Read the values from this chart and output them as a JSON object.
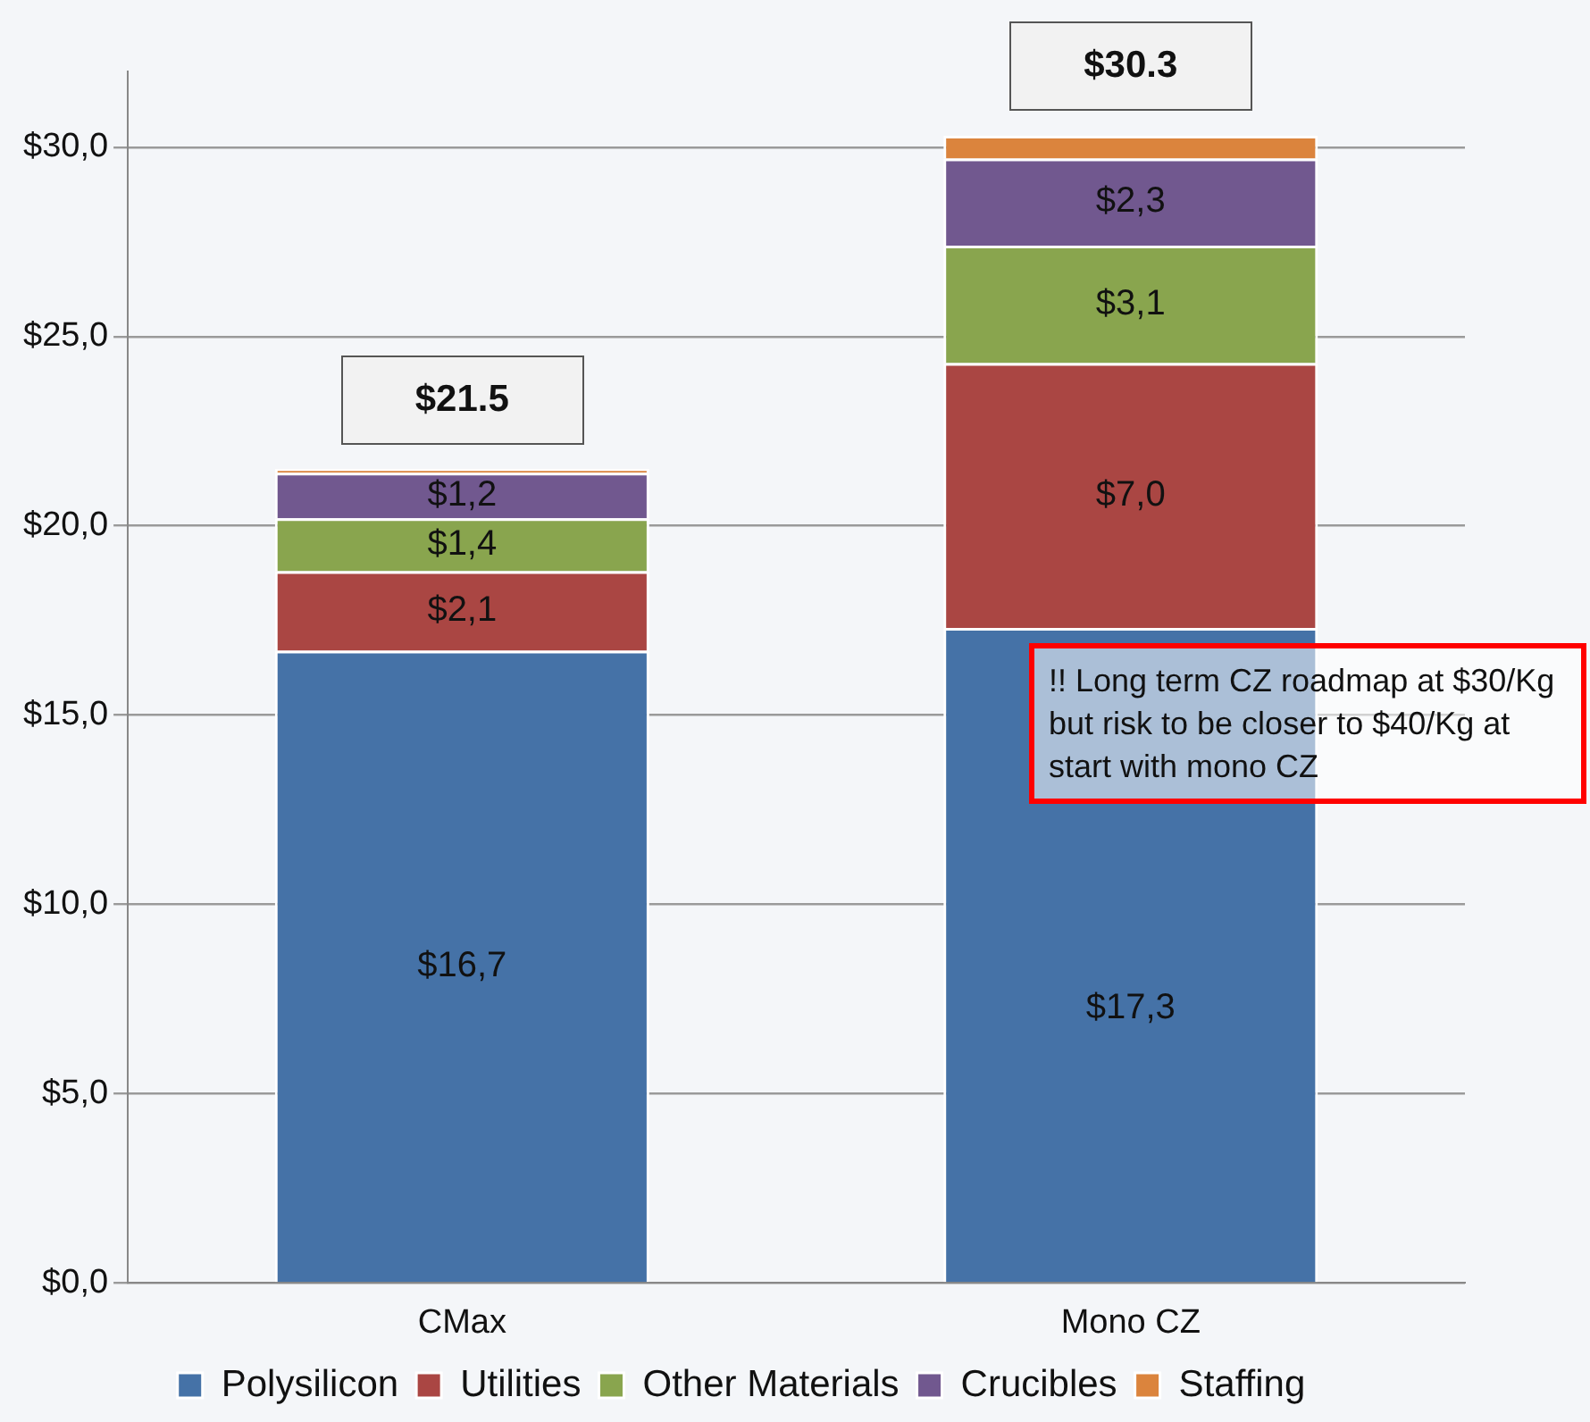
{
  "chart_data": {
    "type": "bar",
    "stacked": true,
    "categories": [
      "CMax",
      "Mono CZ"
    ],
    "series": [
      {
        "name": "Polysilicon",
        "color": "#4572a7",
        "values": [
          16.7,
          17.3
        ],
        "value_labels": [
          "$16,7",
          "$17,3"
        ]
      },
      {
        "name": "Utilities",
        "color": "#aa4643",
        "values": [
          2.1,
          7.0
        ],
        "value_labels": [
          "$2,1",
          "$7,0"
        ]
      },
      {
        "name": "Other Materials",
        "color": "#89a54e",
        "values": [
          1.4,
          3.1
        ],
        "value_labels": [
          "$1,4",
          "$3,1"
        ]
      },
      {
        "name": "Crucibles",
        "color": "#71588f",
        "values": [
          1.2,
          2.3
        ],
        "value_labels": [
          "$1,2",
          "$2,3"
        ]
      },
      {
        "name": "Staffing",
        "color": "#db843d",
        "values": [
          0.1,
          0.6
        ],
        "value_labels": [
          null,
          null
        ]
      }
    ],
    "totals": [
      "$21.5",
      "$30.3"
    ],
    "ylim": [
      0,
      32
    ],
    "yticks": [
      {
        "value": 0,
        "label": "$0,0"
      },
      {
        "value": 5,
        "label": "$5,0"
      },
      {
        "value": 10,
        "label": "$10,0"
      },
      {
        "value": 15,
        "label": "$15,0"
      },
      {
        "value": 20,
        "label": "$20,0"
      },
      {
        "value": 25,
        "label": "$25,0"
      },
      {
        "value": 30,
        "label": "$30,0"
      }
    ],
    "grid": "y",
    "legend": "bottom",
    "annotations": [
      "!! Long term CZ roadmap at $30/Kg but risk to be closer to $40/Kg at start with mono CZ"
    ]
  }
}
